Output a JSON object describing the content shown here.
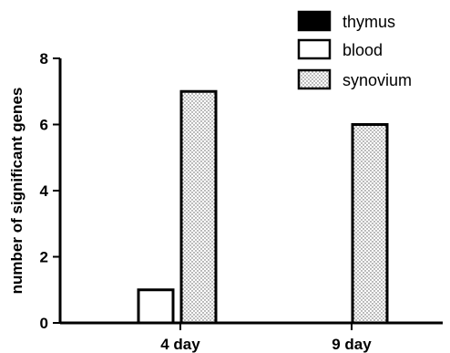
{
  "chart_data": {
    "type": "bar",
    "title": "",
    "xlabel": "",
    "ylabel": "number of significant genes",
    "categories": [
      "4 day",
      "9 day"
    ],
    "ylim": [
      0,
      8
    ],
    "yticks": [
      "0",
      "2",
      "4",
      "6",
      "8"
    ],
    "grid": false,
    "legend_position": "top-right",
    "series": [
      {
        "name": "thymus",
        "values": [
          0,
          0
        ],
        "fill": "solid",
        "color": "#000000"
      },
      {
        "name": "blood",
        "values": [
          1,
          0
        ],
        "fill": "empty",
        "color": "#ffffff"
      },
      {
        "name": "synovium",
        "values": [
          7,
          6
        ],
        "fill": "dotted",
        "color": "#ffffff"
      }
    ]
  }
}
